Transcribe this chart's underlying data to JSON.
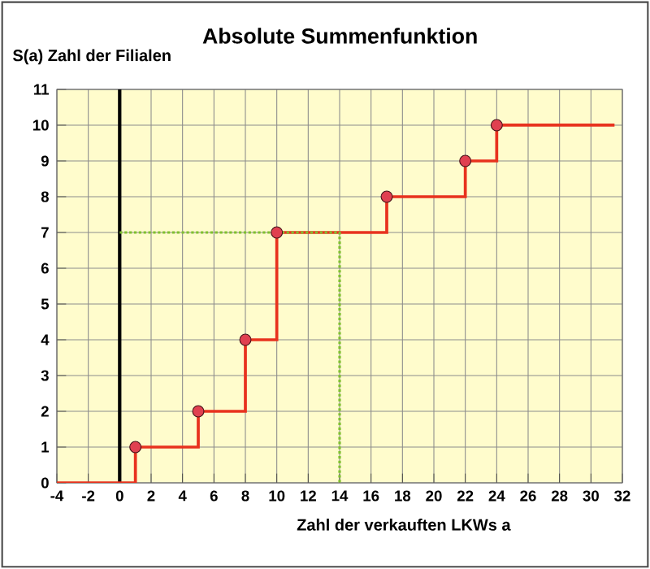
{
  "chart_data": {
    "type": "step",
    "title": "Absolute Summenfunktion",
    "xlabel": "Zahl der verkauften LKWs a",
    "ylabel": "S(a) Zahl der Filialen",
    "xlim": [
      -4,
      32
    ],
    "ylim": [
      0,
      11
    ],
    "xticks": [
      -4,
      -2,
      0,
      2,
      4,
      6,
      8,
      10,
      12,
      14,
      16,
      18,
      20,
      22,
      24,
      26,
      28,
      30,
      32
    ],
    "yticks": [
      0,
      1,
      2,
      3,
      4,
      5,
      6,
      7,
      8,
      9,
      10,
      11
    ],
    "grid": true,
    "series": [
      {
        "color": "#e8321e",
        "x": [
          -4,
          1,
          5,
          8,
          10,
          17,
          22,
          24,
          31.5
        ],
        "values": [
          0,
          1,
          2,
          4,
          7,
          8,
          9,
          10,
          10
        ],
        "marker": "none"
      },
      {
        "type": "scatter",
        "color": "#e04050",
        "x": [
          1,
          5,
          8,
          10,
          17,
          22,
          24
        ],
        "values": [
          1,
          2,
          4,
          7,
          8,
          9,
          10
        ],
        "marker": "circle"
      },
      {
        "type": "line",
        "color": "#80c030",
        "x": [
          0,
          14,
          14
        ],
        "values": [
          7,
          7,
          0
        ],
        "line_style": "dotted",
        "marker": "none"
      }
    ]
  }
}
